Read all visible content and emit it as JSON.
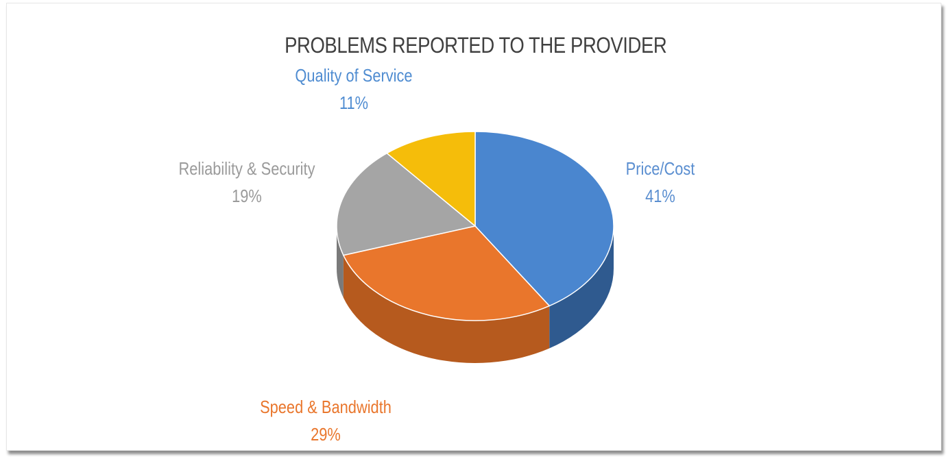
{
  "chart_data": {
    "type": "pie",
    "title": "PROBLEMS REPORTED TO THE PROVIDER",
    "slices": [
      {
        "label": "Price/Cost",
        "value": 41,
        "value_label": "41%",
        "color": "#4a86cf",
        "side_color": "#2f5a8f",
        "label_color": "#5a8ed0"
      },
      {
        "label": "Speed & Bandwidth",
        "value": 29,
        "value_label": "29%",
        "color": "#e9762c",
        "side_color": "#b65a1e",
        "label_color": "#e9762c"
      },
      {
        "label": "Reliability & Security",
        "value": 19,
        "value_label": "19%",
        "color": "#a5a5a5",
        "side_color": "#7a7a7a",
        "label_color": "#9a9a9a"
      },
      {
        "label": "Quality of Service",
        "value": 11,
        "value_label": "11%",
        "color": "#f5bd0a",
        "side_color": "#c79700",
        "label_color": "#4f8cd1"
      }
    ],
    "legend": "none",
    "style": "3d"
  }
}
